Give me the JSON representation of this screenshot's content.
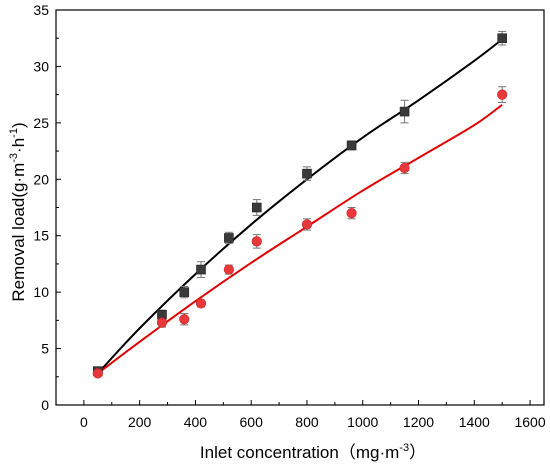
{
  "chart_data": {
    "type": "scatter",
    "xlabel": "Inlet concentration（mg·m",
    "xlabel_sup": "-3",
    "xlabel_end": "）",
    "ylabel_main": "Removal  load(g·m",
    "ylabel_sup1": "-3",
    "ylabel_mid": "·h",
    "ylabel_sup2": "-1",
    "ylabel_end": ")",
    "xlim": [
      -100,
      1650
    ],
    "ylim": [
      0,
      35
    ],
    "xticks": [
      0,
      200,
      400,
      600,
      800,
      1000,
      1200,
      1400,
      1600
    ],
    "yticks": [
      0,
      5,
      10,
      15,
      20,
      25,
      30,
      35
    ],
    "grid": false,
    "series": [
      {
        "marker": "square",
        "color": "#3a3a3a",
        "line_color": "#000000",
        "x": [
          50,
          280,
          360,
          420,
          520,
          620,
          800,
          960,
          1150,
          1500
        ],
        "y": [
          3.0,
          8.0,
          10.0,
          12.0,
          14.8,
          17.5,
          20.5,
          23.0,
          26.0,
          32.5
        ],
        "err": [
          0.3,
          0.4,
          0.5,
          0.7,
          0.5,
          0.7,
          0.6,
          0.4,
          1.0,
          0.6
        ],
        "fit_x": [
          50,
          200,
          400,
          600,
          800,
          1000,
          1200,
          1400,
          1500
        ],
        "fit_y": [
          2.8,
          6.8,
          11.6,
          16.0,
          20.0,
          23.7,
          27.0,
          30.5,
          32.4
        ]
      },
      {
        "marker": "circle",
        "color": "#e8383b",
        "line_color": "#e00000",
        "x": [
          50,
          280,
          360,
          420,
          520,
          620,
          800,
          960,
          1150,
          1500
        ],
        "y": [
          2.8,
          7.3,
          7.6,
          9.0,
          12.0,
          14.5,
          16.0,
          17.0,
          21.0,
          27.5
        ],
        "err": [
          0.2,
          0.4,
          0.5,
          0.3,
          0.4,
          0.6,
          0.5,
          0.5,
          0.5,
          0.7
        ],
        "fit_x": [
          50,
          200,
          400,
          600,
          800,
          1000,
          1200,
          1400,
          1500
        ],
        "fit_y": [
          2.8,
          5.6,
          9.2,
          12.6,
          15.8,
          19.0,
          21.9,
          24.8,
          26.6
        ]
      }
    ]
  }
}
